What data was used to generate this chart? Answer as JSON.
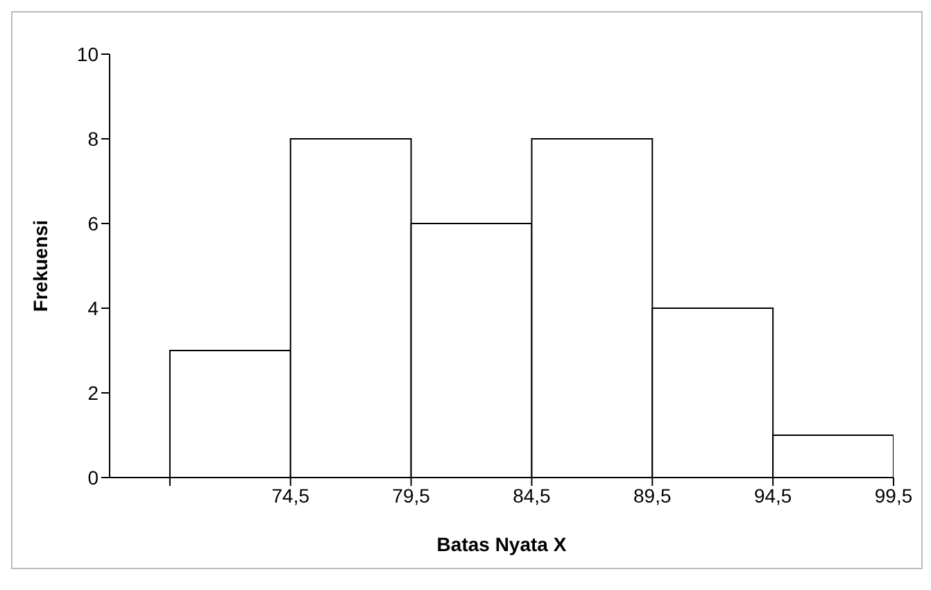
{
  "chart_data": {
    "type": "histogram",
    "xlabel": "Batas Nyata X",
    "ylabel": "Frekuensi",
    "bins": [
      69.5,
      74.5,
      79.5,
      84.5,
      89.5,
      94.5,
      99.5
    ],
    "values": [
      3,
      8,
      6,
      8,
      4,
      1
    ],
    "color": "#ffffff",
    "xlim": [
      67,
      99.5
    ],
    "xticks": [
      {
        "value": 69.5,
        "label": null
      },
      {
        "value": 74.5,
        "label": "74,5"
      },
      {
        "value": 79.5,
        "label": "79,5"
      },
      {
        "value": 84.5,
        "label": "84,5"
      },
      {
        "value": 89.5,
        "label": "89,5"
      },
      {
        "value": 94.5,
        "label": "94,5"
      },
      {
        "value": 99.5,
        "label": "99,5"
      }
    ],
    "ylim": [
      0,
      10
    ],
    "yticks": [
      0,
      2,
      4,
      6,
      8,
      10
    ],
    "grid": false,
    "legend": false
  }
}
